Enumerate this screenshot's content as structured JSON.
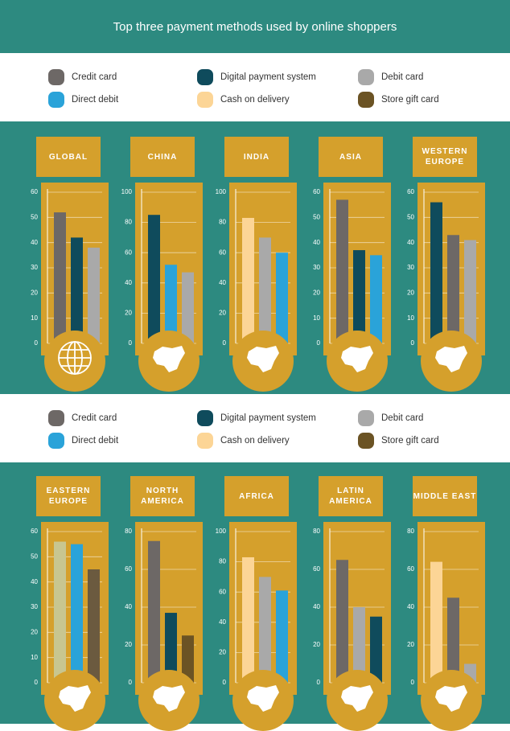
{
  "title": "Top three payment methods used by online shoppers",
  "legend": [
    {
      "name": "Credit card",
      "color": "#6d6866"
    },
    {
      "name": "Digital payment system",
      "color": "#0f4b5c"
    },
    {
      "name": "Debit card",
      "color": "#a9a9a9"
    },
    {
      "name": "Direct debit",
      "color": "#2aa3d9"
    },
    {
      "name": "Cash on delivery",
      "color": "#fcd596"
    },
    {
      "name": "Store gift card",
      "color": "#6b5324"
    }
  ],
  "chart_data": [
    {
      "type": "bar",
      "title": "GLOBAL",
      "values": [
        52,
        42,
        38
      ],
      "colors": [
        "#6d6866",
        "#0f4b5c",
        "#a9a9a9"
      ],
      "ylim": [
        0,
        60
      ],
      "yticks": [
        0,
        10,
        20,
        30,
        40,
        50,
        60
      ],
      "grid": true
    },
    {
      "type": "bar",
      "title": "CHINA",
      "values": [
        85,
        52,
        47
      ],
      "colors": [
        "#0f4b5c",
        "#2aa3d9",
        "#a9a9a9"
      ],
      "ylim": [
        0,
        100
      ],
      "yticks": [
        0,
        20,
        40,
        60,
        80,
        100
      ],
      "grid": true
    },
    {
      "type": "bar",
      "title": "INDIA",
      "values": [
        83,
        70,
        60
      ],
      "colors": [
        "#fcd596",
        "#a9a9a9",
        "#2aa3d9"
      ],
      "ylim": [
        0,
        100
      ],
      "yticks": [
        0,
        20,
        40,
        60,
        80,
        100
      ],
      "grid": true
    },
    {
      "type": "bar",
      "title": "ASIA",
      "values": [
        57,
        37,
        35
      ],
      "colors": [
        "#6d6866",
        "#0f4b5c",
        "#2aa3d9"
      ],
      "ylim": [
        0,
        60
      ],
      "yticks": [
        0,
        10,
        20,
        30,
        40,
        50,
        60
      ],
      "grid": true
    },
    {
      "type": "bar",
      "title": "WESTERN EUROPE",
      "values": [
        56,
        43,
        41
      ],
      "colors": [
        "#0f4b5c",
        "#6d6866",
        "#a9a9a9"
      ],
      "ylim": [
        0,
        60
      ],
      "yticks": [
        0,
        10,
        20,
        30,
        40,
        50,
        60
      ],
      "grid": true
    },
    {
      "type": "bar",
      "title": "EASTERN EUROPE",
      "values": [
        56,
        55,
        45
      ],
      "colors": [
        "#c8c690",
        "#2aa3d9",
        "#6b5a3f"
      ],
      "ylim": [
        0,
        60
      ],
      "yticks": [
        0,
        10,
        20,
        30,
        40,
        50,
        60
      ],
      "grid": true
    },
    {
      "type": "bar",
      "title": "NORTH AMERICA",
      "values": [
        75,
        37,
        25
      ],
      "colors": [
        "#6d6866",
        "#0f4b5c",
        "#6b5324"
      ],
      "ylim": [
        0,
        80
      ],
      "yticks": [
        0,
        20,
        40,
        60,
        80
      ],
      "grid": true
    },
    {
      "type": "bar",
      "title": "AFRICA",
      "values": [
        83,
        70,
        61
      ],
      "colors": [
        "#fcd596",
        "#a9a9a9",
        "#2aa3d9"
      ],
      "ylim": [
        0,
        100
      ],
      "yticks": [
        0,
        20,
        40,
        60,
        80,
        100
      ],
      "grid": true
    },
    {
      "type": "bar",
      "title": "LATIN AMERICA",
      "values": [
        65,
        40,
        35
      ],
      "colors": [
        "#6d6866",
        "#a9a9a9",
        "#0f4b5c"
      ],
      "ylim": [
        0,
        80
      ],
      "yticks": [
        0,
        20,
        40,
        60,
        80
      ],
      "grid": true
    },
    {
      "type": "bar",
      "title": "MIDDLE EAST",
      "values": [
        64,
        45,
        10
      ],
      "colors": [
        "#fcd596",
        "#6d6866",
        "#a9a9a9"
      ],
      "ylim": [
        0,
        80
      ],
      "yticks": [
        0,
        20,
        40,
        60,
        80
      ],
      "grid": true
    }
  ]
}
